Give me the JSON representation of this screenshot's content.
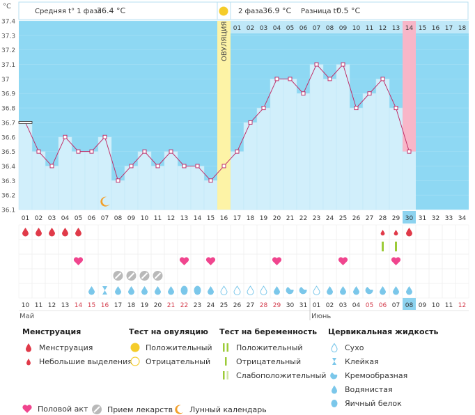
{
  "header": {
    "axis_unit": "°C",
    "phase1_text": "Средняя t° 1 фаза",
    "phase1_value": "36.4 °C",
    "phase2_text": "2 фаза",
    "phase2_value": "36.9 °C",
    "diff_text": "Разница t°",
    "diff_value": "0.5 °C",
    "ovulation_label": "ОВУЛЯЦИЯ"
  },
  "chart_data": {
    "type": "line",
    "ylim": [
      36.1,
      37.4
    ],
    "yticks": [
      "37.4",
      "37.3",
      "37.2",
      "37.1",
      "37",
      "36.9",
      "36.8",
      "36.7",
      "36.6",
      "36.5",
      "36.4",
      "36.3",
      "36.2",
      "36.1"
    ],
    "cycle_days": [
      "01",
      "02",
      "03",
      "04",
      "05",
      "06",
      "07",
      "08",
      "09",
      "10",
      "11",
      "12",
      "13",
      "14",
      "15",
      "16",
      "17",
      "18",
      "19",
      "20",
      "21",
      "22",
      "23",
      "24",
      "25",
      "26",
      "27",
      "28",
      "29",
      "30",
      "31",
      "32",
      "33",
      "34"
    ],
    "phase2_days": [
      "01",
      "02",
      "03",
      "04",
      "05",
      "06",
      "07",
      "08",
      "09",
      "10",
      "11",
      "12",
      "13",
      "14",
      "15",
      "16",
      "17",
      "18"
    ],
    "temperatures": [
      36.7,
      36.5,
      36.4,
      36.6,
      36.5,
      36.5,
      36.6,
      36.3,
      36.4,
      36.5,
      36.4,
      36.5,
      36.4,
      36.4,
      36.3,
      36.4,
      36.5,
      36.7,
      36.8,
      37.0,
      37.0,
      36.9,
      37.1,
      37.0,
      37.1,
      36.8,
      36.9,
      37.0,
      36.8,
      36.5
    ],
    "ovulation_day": 16,
    "highlight_day": 30,
    "dates": [
      "10",
      "11",
      "12",
      "13",
      "14",
      "15",
      "16",
      "17",
      "18",
      "19",
      "20",
      "21",
      "22",
      "23",
      "24",
      "25",
      "26",
      "27",
      "28",
      "29",
      "30",
      "31",
      "01",
      "02",
      "03",
      "04",
      "05",
      "06",
      "07",
      "08",
      "09",
      "10",
      "11",
      "12"
    ],
    "weekend_indices": [
      4,
      5,
      6,
      11,
      12,
      18,
      19,
      26,
      27,
      33
    ],
    "months": [
      "Май",
      "Июнь"
    ]
  },
  "markers": {
    "menstruation": [
      1,
      2,
      3,
      4,
      5,
      30
    ],
    "spotting": [
      28,
      29
    ],
    "pregnancy_positive": [
      29
    ],
    "pregnancy_negative": [
      28
    ],
    "intercourse": [
      5,
      13,
      15,
      20,
      25,
      29
    ],
    "medication": [
      8,
      9,
      10,
      11
    ],
    "fluid": [
      "watery",
      "sticky",
      "watery",
      "watery",
      "watery",
      "watery",
      "watery",
      "egg",
      "egg",
      "watery",
      "dry",
      "dry",
      "dry",
      "dry",
      "watery",
      "creamy",
      "creamy",
      "dry",
      "watery",
      "watery",
      "watery",
      "creamy",
      "watery",
      "watery",
      "watery"
    ],
    "moon_day": 7
  },
  "legend": {
    "menstruation_title": "Менструация",
    "menstruation": "Менструация",
    "spotting": "Небольшие выделения",
    "ovulation_title": "Тест на овуляцию",
    "ovu_positive": "Положительный",
    "ovu_negative": "Отрицательный",
    "pregnancy_title": "Тест на беременность",
    "preg_positive": "Положительный",
    "preg_negative": "Отрицательный",
    "preg_weak": "Слабоположительный",
    "fluid_title": "Цервикальная жидкость",
    "dry": "Сухо",
    "sticky": "Клейкая",
    "creamy": "Кремообразная",
    "watery": "Водянистая",
    "egg": "Яичный белок",
    "intercourse": "Половой акт",
    "medication": "Прием лекарств",
    "moon": "Лунный календарь"
  },
  "colors": {
    "background": "#8ed8f3",
    "bar": "#d1effb",
    "line": "#c0306a",
    "ovulation": "#fdf3a6",
    "highlight": "#f8b6c8",
    "blood": "#e03a49",
    "heart": "#f0458e",
    "drop": "#7bc7ea",
    "green": "#9ccb38"
  }
}
